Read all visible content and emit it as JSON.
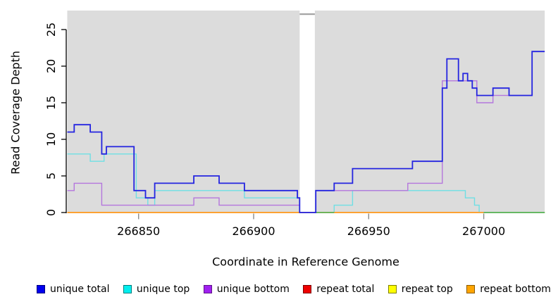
{
  "chart_data": {
    "type": "line",
    "line_style": "step",
    "title": "",
    "xlabel": "Coordinate in Reference Genome",
    "ylabel": "Read Coverage Depth",
    "xlim": [
      266819,
      267026.5
    ],
    "ylim": [
      0,
      27.6
    ],
    "x_ticks": [
      266850,
      266900,
      266950,
      267000
    ],
    "y_ticks": [
      0,
      5,
      10,
      15,
      20,
      25
    ],
    "grid": false,
    "plot_background": "#dcdcdc",
    "masked_region": {
      "x_start": 266920,
      "x_end": 266926.6,
      "color": "#ffffff"
    },
    "series": [
      {
        "name": "unique total",
        "color": "#2424e0",
        "width": 1.8,
        "points": [
          [
            266819,
            11
          ],
          [
            266822,
            12
          ],
          [
            266829,
            11
          ],
          [
            266834,
            8
          ],
          [
            266836,
            9
          ],
          [
            266848,
            3
          ],
          [
            266853,
            2
          ],
          [
            266857,
            4
          ],
          [
            266874,
            5
          ],
          [
            266885,
            4
          ],
          [
            266896,
            3
          ],
          [
            266919,
            2
          ],
          [
            266920,
            0
          ],
          [
            266927,
            3
          ],
          [
            266935,
            4
          ],
          [
            266943,
            6
          ],
          [
            266969,
            7
          ],
          [
            266982,
            17
          ],
          [
            266984,
            21
          ],
          [
            266989,
            18
          ],
          [
            266991,
            19
          ],
          [
            266993,
            18
          ],
          [
            266995,
            17
          ],
          [
            266997,
            16
          ],
          [
            267004,
            17
          ],
          [
            267011,
            16
          ],
          [
            267021,
            22
          ]
        ]
      },
      {
        "name": "unique top",
        "color": "#6fdfe4",
        "width": 1.4,
        "points": [
          [
            266819,
            8
          ],
          [
            266829,
            7
          ],
          [
            266835,
            8
          ],
          [
            266849,
            2
          ],
          [
            266854,
            1
          ],
          [
            266857,
            3
          ],
          [
            266896,
            2
          ],
          [
            266920,
            0
          ],
          [
            266935,
            1
          ],
          [
            266943,
            3
          ],
          [
            266992,
            2
          ],
          [
            266996,
            1
          ],
          [
            266998,
            0
          ]
        ]
      },
      {
        "name": "unique bottom",
        "color": "#b476dd",
        "width": 1.4,
        "points": [
          [
            266819,
            3
          ],
          [
            266822,
            4
          ],
          [
            266834,
            1
          ],
          [
            266874,
            2
          ],
          [
            266885,
            1
          ],
          [
            266920,
            0
          ],
          [
            266927,
            3
          ],
          [
            266967,
            4
          ],
          [
            266982,
            18
          ],
          [
            266997,
            15
          ],
          [
            267004,
            16
          ],
          [
            267021,
            22
          ]
        ]
      },
      {
        "name": "repeat total",
        "color": "#dd2222",
        "width": 1.4,
        "points": [
          [
            266819,
            0
          ]
        ]
      },
      {
        "name": "repeat top",
        "color": "#eeee22",
        "width": 1.4,
        "points": [
          [
            266819,
            0
          ]
        ]
      },
      {
        "name": "repeat bottom",
        "color": "#ff9f2e",
        "width": 1.7,
        "points": [
          [
            266819,
            0
          ]
        ],
        "visible_extent": [
          266819,
          267000
        ]
      }
    ],
    "zero_line_overlap_segments": [
      {
        "color": "#5cb45c",
        "x": [
          266927,
          266935
        ]
      },
      {
        "color": "#5cb45c",
        "x": [
          267000,
          267026.5
        ]
      }
    ],
    "legend_position": "bottom",
    "legend": [
      {
        "label": "unique total",
        "fill": "#0000ee",
        "border": "#000080"
      },
      {
        "label": "unique top",
        "fill": "#00eeee",
        "border": "#007d7d"
      },
      {
        "label": "unique bottom",
        "fill": "#a020f0",
        "border": "#5e1687"
      },
      {
        "label": "repeat total",
        "fill": "#ee0000",
        "border": "#7d0000"
      },
      {
        "label": "repeat top",
        "fill": "#ffff00",
        "border": "#808000"
      },
      {
        "label": "repeat bottom",
        "fill": "#ffa500",
        "border": "#8a5a00"
      }
    ]
  }
}
